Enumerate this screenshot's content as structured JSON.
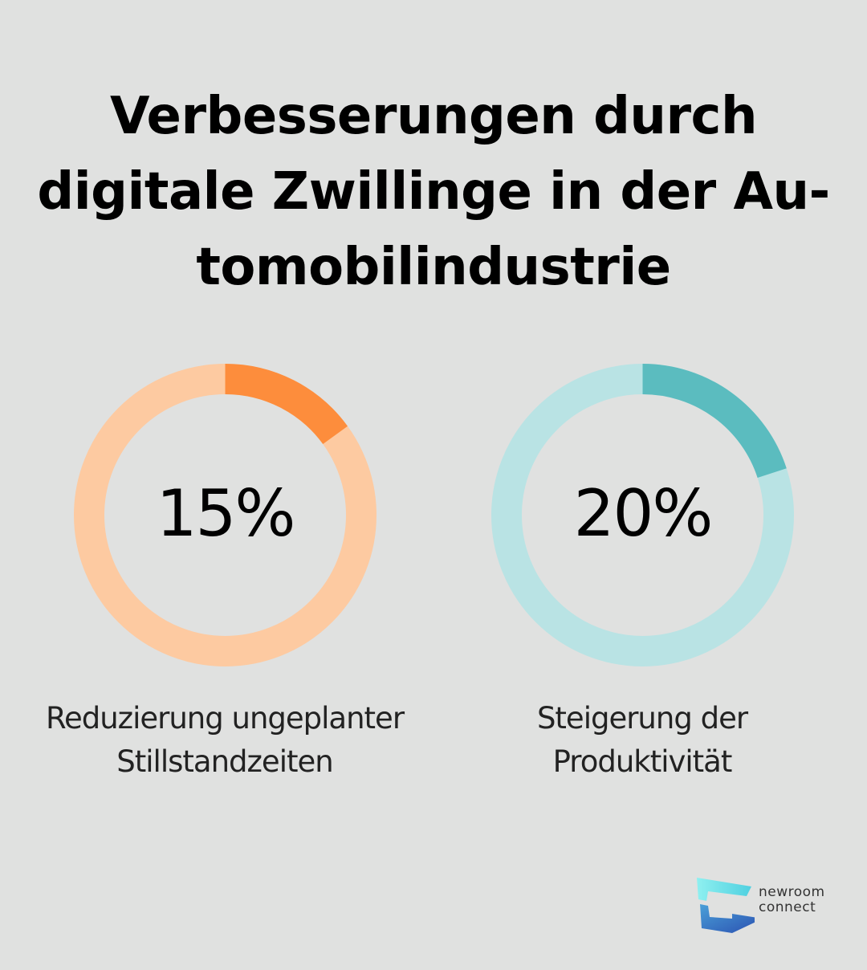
{
  "title": {
    "lines": [
      "Verbesserungen durch",
      "digitale Zwillinge in der Au-",
      "tomobilindustrie"
    ]
  },
  "chart_data": [
    {
      "type": "pie",
      "value": 15,
      "value_label": "15%",
      "label_lines": [
        "Reduzierung ungeplanter",
        "Stillstandzeiten"
      ],
      "colors": {
        "filled": "#fd8d3c",
        "track": "#fdcaa1"
      }
    },
    {
      "type": "pie",
      "value": 20,
      "value_label": "20%",
      "label_lines": [
        "Steigerung der",
        "Produktivität"
      ],
      "colors": {
        "filled": "#5bbcbf",
        "track": "#b9e3e4"
      }
    }
  ],
  "logo": {
    "lines": [
      "newroom",
      "connect"
    ],
    "colors": {
      "top": "#5fd9e0",
      "bottom": "#2f62b5"
    }
  }
}
